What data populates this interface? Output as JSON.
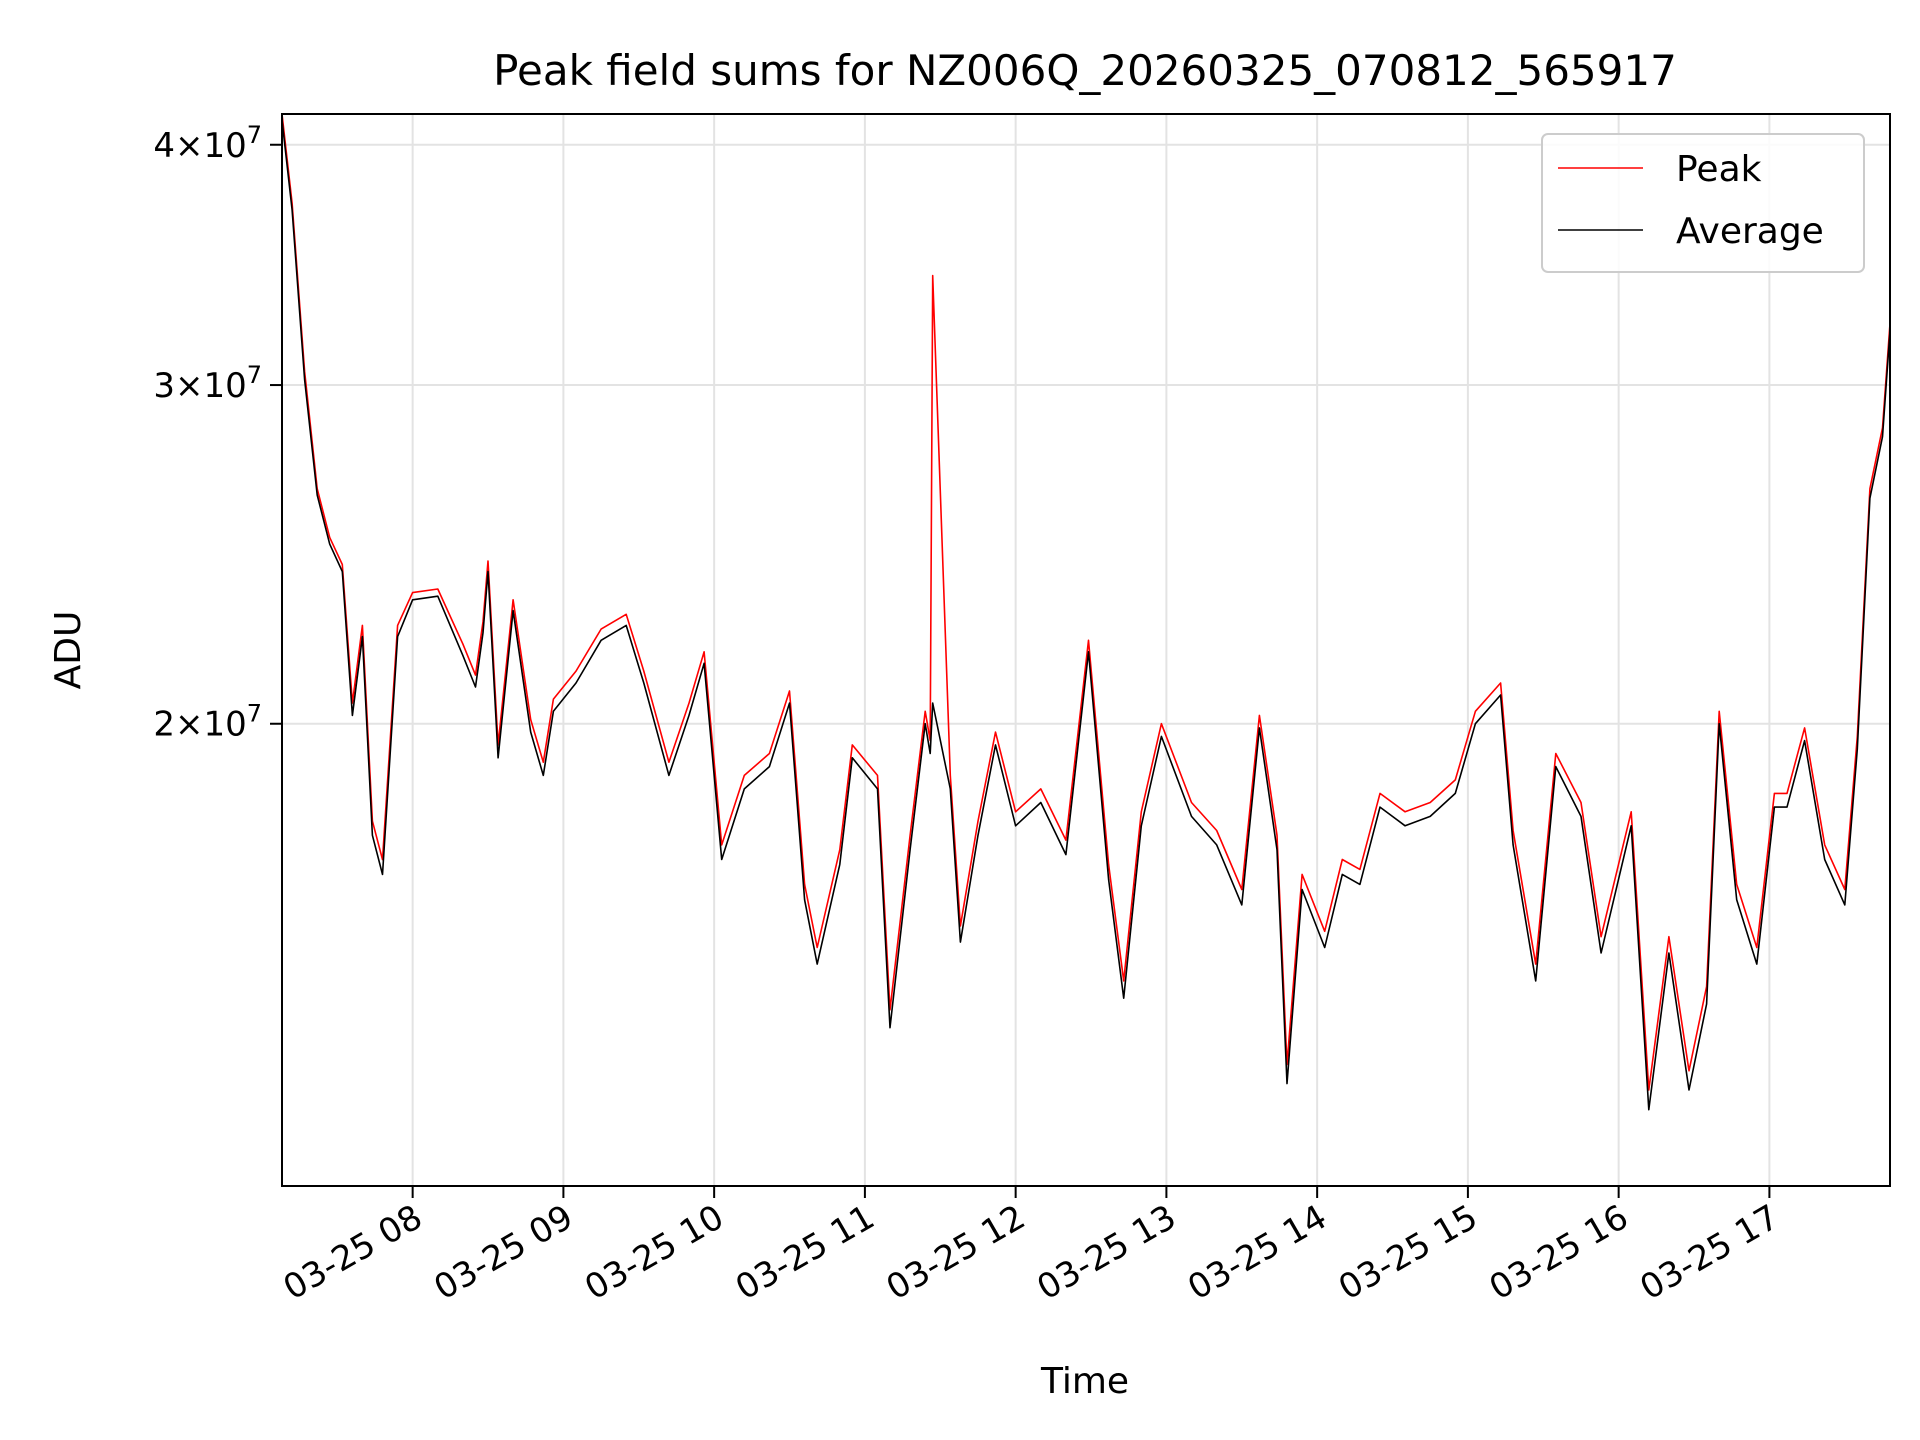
{
  "chart_data": {
    "type": "line",
    "title": "Peak field sums for NZ006Q_20260325_070812_565917",
    "xlabel": "Time",
    "ylabel": "ADU",
    "y_scale": "log",
    "ylim": [
      11500000,
      41500000
    ],
    "xlim": [
      "2026-03-25 07:08",
      "2026-03-25 17:48"
    ],
    "grid": true,
    "legend_position": "top-right",
    "x_tick_labels": [
      "03-25 08",
      "03-25 09",
      "03-25 10",
      "03-25 11",
      "03-25 12",
      "03-25 13",
      "03-25 14",
      "03-25 15",
      "03-25 16",
      "03-25 17"
    ],
    "x_tick_values": [
      "2026-03-25 08:00",
      "2026-03-25 09:00",
      "2026-03-25 10:00",
      "2026-03-25 11:00",
      "2026-03-25 12:00",
      "2026-03-25 13:00",
      "2026-03-25 14:00",
      "2026-03-25 15:00",
      "2026-03-25 16:00",
      "2026-03-25 17:00"
    ],
    "y_ticks": [
      {
        "value": 20000000,
        "base": "2",
        "exp": "7"
      },
      {
        "value": 30000000,
        "base": "3",
        "exp": "7"
      },
      {
        "value": 40000000,
        "base": "4",
        "exp": "7"
      }
    ],
    "series": [
      {
        "name": "Peak",
        "color": "#ff0000",
        "x": [
          "2026-03-25 07:08",
          "2026-03-25 07:12",
          "2026-03-25 07:17",
          "2026-03-25 07:22",
          "2026-03-25 07:27",
          "2026-03-25 07:32",
          "2026-03-25 07:36",
          "2026-03-25 07:40",
          "2026-03-25 07:44",
          "2026-03-25 07:48",
          "2026-03-25 07:54",
          "2026-03-25 08:00",
          "2026-03-25 08:10",
          "2026-03-25 08:20",
          "2026-03-25 08:25",
          "2026-03-25 08:28",
          "2026-03-25 08:30",
          "2026-03-25 08:34",
          "2026-03-25 08:40",
          "2026-03-25 08:47",
          "2026-03-25 08:52",
          "2026-03-25 08:56",
          "2026-03-25 09:05",
          "2026-03-25 09:15",
          "2026-03-25 09:25",
          "2026-03-25 09:32",
          "2026-03-25 09:42",
          "2026-03-25 09:50",
          "2026-03-25 09:56",
          "2026-03-25 10:03",
          "2026-03-25 10:12",
          "2026-03-25 10:22",
          "2026-03-25 10:30",
          "2026-03-25 10:36",
          "2026-03-25 10:41",
          "2026-03-25 10:50",
          "2026-03-25 10:55",
          "2026-03-25 11:05",
          "2026-03-25 11:10",
          "2026-03-25 11:18",
          "2026-03-25 11:24",
          "2026-03-25 11:26",
          "2026-03-25 11:27",
          "2026-03-25 11:34",
          "2026-03-25 11:38",
          "2026-03-25 11:45",
          "2026-03-25 11:52",
          "2026-03-25 12:00",
          "2026-03-25 12:10",
          "2026-03-25 12:20",
          "2026-03-25 12:29",
          "2026-03-25 12:37",
          "2026-03-25 12:43",
          "2026-03-25 12:50",
          "2026-03-25 12:58",
          "2026-03-25 13:10",
          "2026-03-25 13:20",
          "2026-03-25 13:30",
          "2026-03-25 13:37",
          "2026-03-25 13:44",
          "2026-03-25 13:48",
          "2026-03-25 13:54",
          "2026-03-25 14:03",
          "2026-03-25 14:10",
          "2026-03-25 14:17",
          "2026-03-25 14:25",
          "2026-03-25 14:35",
          "2026-03-25 14:45",
          "2026-03-25 14:55",
          "2026-03-25 15:03",
          "2026-03-25 15:13",
          "2026-03-25 15:18",
          "2026-03-25 15:27",
          "2026-03-25 15:35",
          "2026-03-25 15:45",
          "2026-03-25 15:53",
          "2026-03-25 16:05",
          "2026-03-25 16:12",
          "2026-03-25 16:20",
          "2026-03-25 16:28",
          "2026-03-25 16:35",
          "2026-03-25 16:40",
          "2026-03-25 16:47",
          "2026-03-25 16:55",
          "2026-03-25 17:02",
          "2026-03-25 17:07",
          "2026-03-25 17:14",
          "2026-03-25 17:22",
          "2026-03-25 17:30",
          "2026-03-25 17:35",
          "2026-03-25 17:40",
          "2026-03-25 17:45",
          "2026-03-25 17:48"
        ],
        "values": [
          41500000,
          37300000,
          30500000,
          26500000,
          25000000,
          24200000,
          20500000,
          22500000,
          17800000,
          17000000,
          22500000,
          23400000,
          23500000,
          22000000,
          21200000,
          22600000,
          24300000,
          19500000,
          23200000,
          20100000,
          19100000,
          20600000,
          21300000,
          22400000,
          22800000,
          21300000,
          19100000,
          20500000,
          21800000,
          17300000,
          18800000,
          19300000,
          20800000,
          16500000,
          15300000,
          17200000,
          19500000,
          18800000,
          14200000,
          17500000,
          20300000,
          19600000,
          34200000,
          18800000,
          15700000,
          17800000,
          19800000,
          18000000,
          18500000,
          17400000,
          22100000,
          16900000,
          14700000,
          18000000,
          20000000,
          18200000,
          17600000,
          16400000,
          20200000,
          17500000,
          13300000,
          16700000,
          15600000,
          17000000,
          16800000,
          18400000,
          18000000,
          18200000,
          18700000,
          20300000,
          21000000,
          17600000,
          15000000,
          19300000,
          18200000,
          15500000,
          18000000,
          12900000,
          15500000,
          13200000,
          14600000,
          20300000,
          16500000,
          15300000,
          18400000,
          18400000,
          19900000,
          17300000,
          16400000,
          19700000,
          26500000,
          28500000,
          32300000
        ]
      },
      {
        "name": "Average",
        "color": "#000000",
        "x": [
          "2026-03-25 07:08",
          "2026-03-25 07:12",
          "2026-03-25 07:17",
          "2026-03-25 07:22",
          "2026-03-25 07:27",
          "2026-03-25 07:32",
          "2026-03-25 07:36",
          "2026-03-25 07:40",
          "2026-03-25 07:44",
          "2026-03-25 07:48",
          "2026-03-25 07:54",
          "2026-03-25 08:00",
          "2026-03-25 08:10",
          "2026-03-25 08:20",
          "2026-03-25 08:25",
          "2026-03-25 08:28",
          "2026-03-25 08:30",
          "2026-03-25 08:34",
          "2026-03-25 08:40",
          "2026-03-25 08:47",
          "2026-03-25 08:52",
          "2026-03-25 08:56",
          "2026-03-25 09:05",
          "2026-03-25 09:15",
          "2026-03-25 09:25",
          "2026-03-25 09:32",
          "2026-03-25 09:42",
          "2026-03-25 09:50",
          "2026-03-25 09:56",
          "2026-03-25 10:03",
          "2026-03-25 10:12",
          "2026-03-25 10:22",
          "2026-03-25 10:30",
          "2026-03-25 10:36",
          "2026-03-25 10:41",
          "2026-03-25 10:50",
          "2026-03-25 10:55",
          "2026-03-25 11:05",
          "2026-03-25 11:10",
          "2026-03-25 11:18",
          "2026-03-25 11:24",
          "2026-03-25 11:26",
          "2026-03-25 11:27",
          "2026-03-25 11:34",
          "2026-03-25 11:38",
          "2026-03-25 11:45",
          "2026-03-25 11:52",
          "2026-03-25 12:00",
          "2026-03-25 12:10",
          "2026-03-25 12:20",
          "2026-03-25 12:29",
          "2026-03-25 12:37",
          "2026-03-25 12:43",
          "2026-03-25 12:50",
          "2026-03-25 12:58",
          "2026-03-25 13:10",
          "2026-03-25 13:20",
          "2026-03-25 13:30",
          "2026-03-25 13:37",
          "2026-03-25 13:44",
          "2026-03-25 13:48",
          "2026-03-25 13:54",
          "2026-03-25 14:03",
          "2026-03-25 14:10",
          "2026-03-25 14:17",
          "2026-03-25 14:25",
          "2026-03-25 14:35",
          "2026-03-25 14:45",
          "2026-03-25 14:55",
          "2026-03-25 15:03",
          "2026-03-25 15:13",
          "2026-03-25 15:18",
          "2026-03-25 15:27",
          "2026-03-25 15:35",
          "2026-03-25 15:45",
          "2026-03-25 15:53",
          "2026-03-25 16:05",
          "2026-03-25 16:12",
          "2026-03-25 16:20",
          "2026-03-25 16:28",
          "2026-03-25 16:35",
          "2026-03-25 16:40",
          "2026-03-25 16:47",
          "2026-03-25 16:55",
          "2026-03-25 17:02",
          "2026-03-25 17:07",
          "2026-03-25 17:14",
          "2026-03-25 17:22",
          "2026-03-25 17:30",
          "2026-03-25 17:35",
          "2026-03-25 17:40",
          "2026-03-25 17:45",
          "2026-03-25 17:48"
        ],
        "values": [
          41200000,
          37000000,
          30200000,
          26300000,
          24800000,
          24000000,
          20200000,
          22200000,
          17500000,
          16700000,
          22200000,
          23200000,
          23300000,
          21700000,
          20900000,
          22300000,
          24000000,
          19200000,
          22900000,
          19800000,
          18800000,
          20300000,
          21000000,
          22100000,
          22500000,
          21000000,
          18800000,
          20200000,
          21500000,
          17000000,
          18500000,
          19000000,
          20500000,
          16200000,
          15000000,
          16900000,
          19200000,
          18500000,
          13900000,
          17200000,
          20000000,
          19300000,
          20500000,
          18500000,
          15400000,
          17500000,
          19500000,
          17700000,
          18200000,
          17100000,
          21800000,
          16600000,
          14400000,
          17700000,
          19700000,
          17900000,
          17300000,
          16100000,
          19900000,
          17200000,
          13000000,
          16400000,
          15300000,
          16700000,
          16500000,
          18100000,
          17700000,
          17900000,
          18400000,
          20000000,
          20700000,
          17300000,
          14700000,
          19000000,
          17900000,
          15200000,
          17700000,
          12600000,
          15200000,
          12900000,
          14300000,
          20000000,
          16200000,
          15000000,
          18100000,
          18100000,
          19600000,
          17000000,
          16100000,
          19400000,
          26200000,
          28200000,
          32000000
        ]
      }
    ]
  }
}
